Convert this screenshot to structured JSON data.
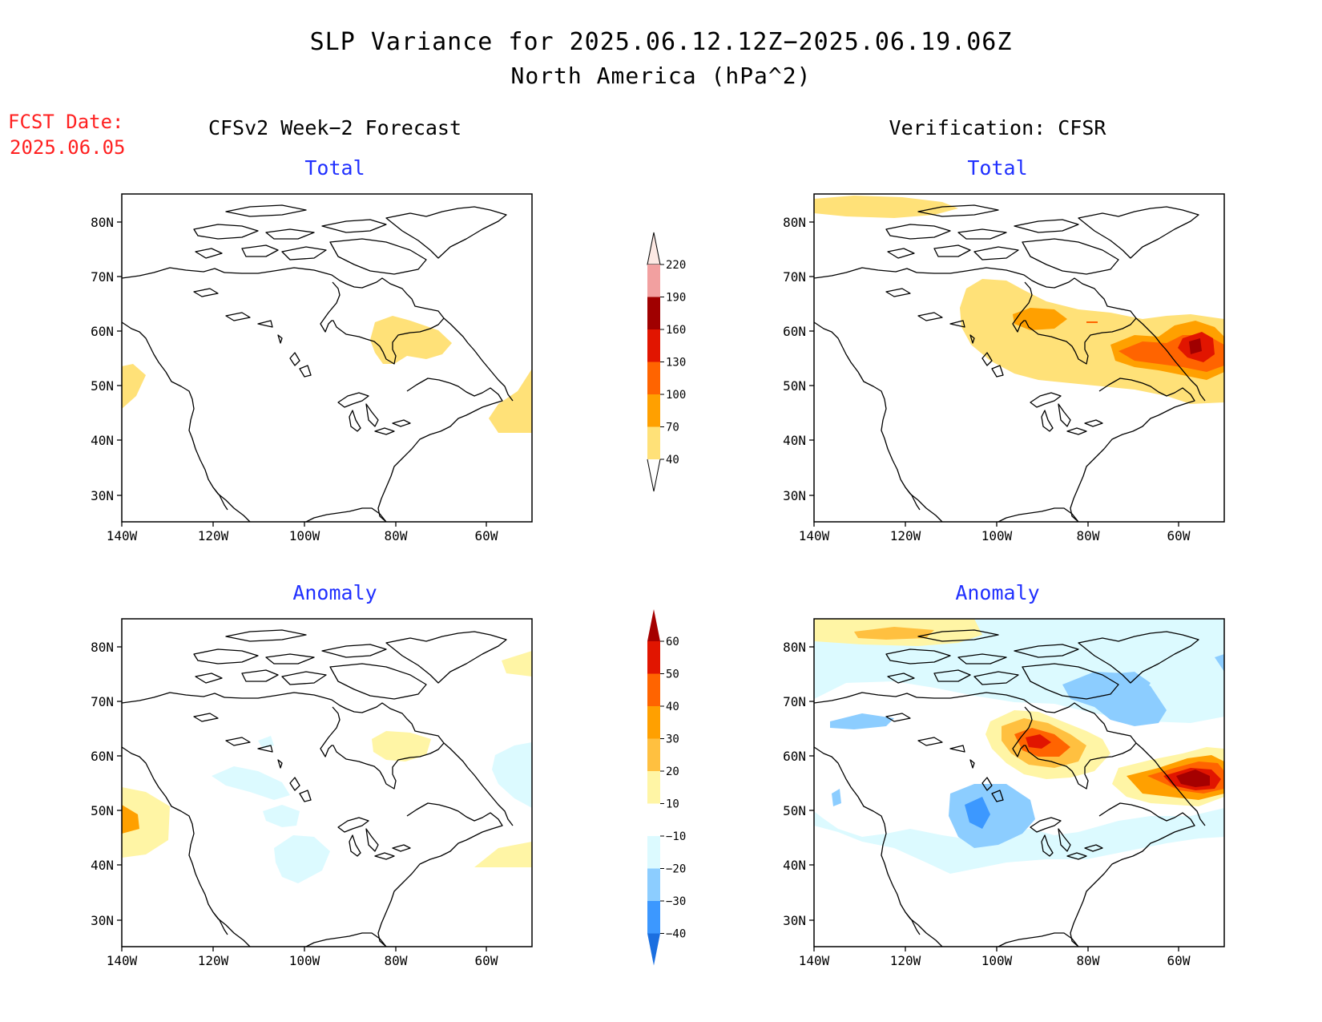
{
  "header": {
    "title": "SLP Variance for 2025.06.12.12Z−2025.06.19.06Z",
    "subtitle": "North America (hPa^2)"
  },
  "fcst": {
    "label": "FCST Date:",
    "date": "2025.06.05"
  },
  "columns": {
    "left": "CFSv2 Week−2 Forecast",
    "right": "Verification: CFSR"
  },
  "panel_titles": {
    "total": "Total",
    "anomaly": "Anomaly"
  },
  "axes": {
    "lat_labels": [
      "80N",
      "70N",
      "60N",
      "50N",
      "40N",
      "30N"
    ],
    "lon_labels": [
      "140W",
      "120W",
      "100W",
      "80W",
      "60W"
    ]
  },
  "colorbars": {
    "total": {
      "labels": [
        "220",
        "190",
        "160",
        "130",
        "100",
        "70",
        "40"
      ],
      "colors": [
        "#fde9e4",
        "#f2a0a0",
        "#a00000",
        "#e11500",
        "#ff6400",
        "#ffa000",
        "#ffe178"
      ]
    },
    "anomaly": {
      "labels": [
        "60",
        "50",
        "40",
        "30",
        "20",
        "10",
        "−10",
        "−20",
        "−30",
        "−40"
      ],
      "colors": [
        "#a50000",
        "#e11500",
        "#ff6400",
        "#ffa000",
        "#ffc040",
        "#fff5a5",
        "#ffffff",
        "#dcfaff",
        "#8ccdff",
        "#3c98ff",
        "#1b6fe0"
      ]
    }
  },
  "colors": {
    "fcst": "#ff2020",
    "subtitle_blue": "#2030ff"
  }
}
